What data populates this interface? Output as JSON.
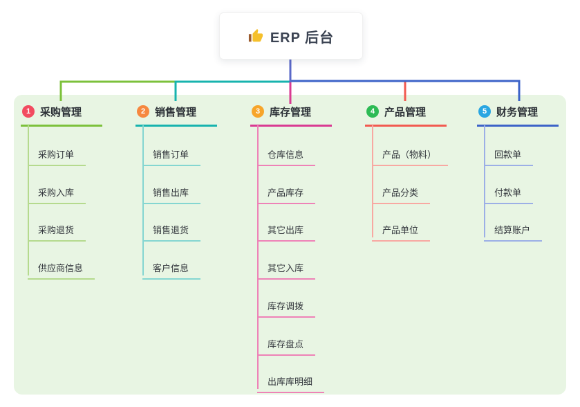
{
  "root": {
    "label": "ERP 后台",
    "icon": "thumbs-up-icon"
  },
  "panel": {
    "bg": "#e8f5e3"
  },
  "trunk_color": "#5a68c8",
  "text_color": "#33373d",
  "branches": [
    {
      "badge": "1",
      "label": "采购管理",
      "badge_color": "#f24b60",
      "line_color": "#7cc13b",
      "child_line_color": "#b5da8e",
      "children": [
        "采购订单",
        "采购入库",
        "采购退货",
        "供应商信息"
      ]
    },
    {
      "badge": "2",
      "label": "销售管理",
      "badge_color": "#f6883f",
      "line_color": "#17b3ae",
      "child_line_color": "#84d6d1",
      "children": [
        "销售订单",
        "销售出库",
        "销售退货",
        "客户信息"
      ]
    },
    {
      "badge": "3",
      "label": "库存管理",
      "badge_color": "#f7a52a",
      "line_color": "#d93a92",
      "child_line_color": "#ee82b7",
      "children": [
        "仓库信息",
        "产品库存",
        "其它出库",
        "其它入库",
        "库存调拨",
        "库存盘点",
        "出库库明细"
      ]
    },
    {
      "badge": "4",
      "label": "产品管理",
      "badge_color": "#2dbb55",
      "line_color": "#f25a50",
      "child_line_color": "#f8a8a2",
      "children": [
        "产品（物料）",
        "产品分类",
        "产品单位"
      ]
    },
    {
      "badge": "5",
      "label": "财务管理",
      "badge_color": "#29a6e2",
      "line_color": "#3c63c8",
      "child_line_color": "#9cafe6",
      "children": [
        "回款单",
        "付款单",
        "结算账户"
      ]
    }
  ]
}
